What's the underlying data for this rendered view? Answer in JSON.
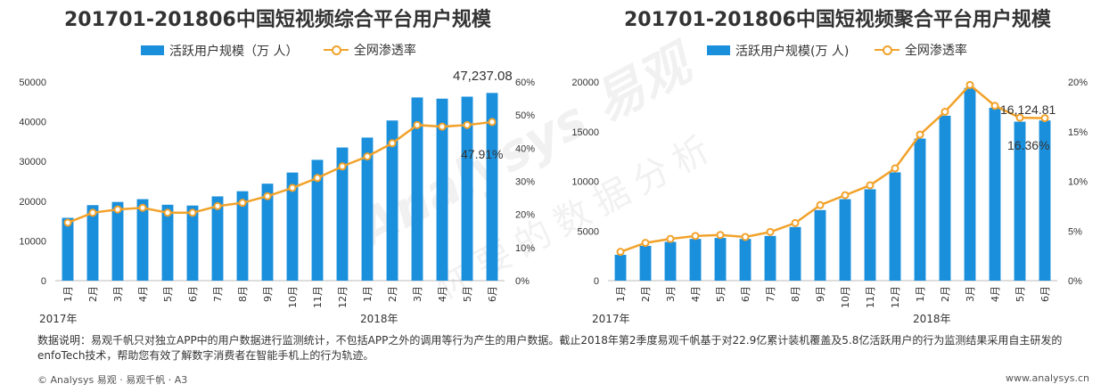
{
  "chart_data": [
    {
      "type": "bar",
      "title": "201701-201806中国短视频综合平台用户规模",
      "legend": [
        "活跃用户规模（万 人）",
        "全网渗透率"
      ],
      "categories": [
        "1月",
        "2月",
        "3月",
        "4月",
        "5月",
        "6月",
        "7月",
        "8月",
        "9月",
        "10月",
        "11月",
        "12月",
        "1月",
        "2月",
        "3月",
        "4月",
        "5月",
        "6月"
      ],
      "year_labels": [
        "2017年",
        "2018年"
      ],
      "series": [
        {
          "name": "活跃用户规模（万 人）",
          "type": "bar",
          "axis": "left",
          "values": [
            15800,
            19000,
            19800,
            20500,
            19100,
            18900,
            21200,
            22500,
            24400,
            27200,
            30400,
            33500,
            36000,
            40300,
            46100,
            45800,
            46300,
            47237.08
          ]
        },
        {
          "name": "全网渗透率",
          "type": "line",
          "axis": "right",
          "values": [
            17.5,
            20.5,
            21.5,
            22.0,
            20.5,
            20.5,
            22.5,
            23.5,
            25.5,
            28.0,
            31.0,
            34.5,
            37.5,
            41.5,
            47.0,
            46.5,
            47.0,
            47.91
          ]
        }
      ],
      "left_axis": {
        "min": 0,
        "max": 50000,
        "ticks": [
          "0",
          "10000",
          "20000",
          "30000",
          "40000",
          "50000"
        ]
      },
      "right_axis": {
        "min": 0,
        "max": 60,
        "ticks": [
          "0%",
          "10%",
          "20%",
          "30%",
          "40%",
          "50%",
          "60%"
        ]
      },
      "annotations": [
        "47,237.08",
        "47.91%"
      ]
    },
    {
      "type": "bar",
      "title": "201701-201806中国短视频聚合平台用户规模",
      "legend": [
        "活跃用户规模(万 人)",
        "全网渗透率"
      ],
      "categories": [
        "1月",
        "2月",
        "3月",
        "4月",
        "5月",
        "6月",
        "7月",
        "8月",
        "9月",
        "10月",
        "11月",
        "12月",
        "1月",
        "2月",
        "3月",
        "4月",
        "5月",
        "6月"
      ],
      "year_labels": [
        "2017年",
        "2018年"
      ],
      "series": [
        {
          "name": "活跃用户规模(万 人)",
          "type": "bar",
          "axis": "left",
          "values": [
            2600,
            3500,
            3900,
            4200,
            4300,
            4200,
            4500,
            5400,
            7100,
            8200,
            9200,
            10900,
            14300,
            16600,
            19400,
            17400,
            16000,
            16124.81
          ]
        },
        {
          "name": "全网渗透率",
          "type": "line",
          "axis": "right",
          "values": [
            2.9,
            3.8,
            4.2,
            4.5,
            4.6,
            4.4,
            4.9,
            5.8,
            7.6,
            8.6,
            9.6,
            11.3,
            14.7,
            17.0,
            19.7,
            17.6,
            16.4,
            16.36
          ]
        }
      ],
      "left_axis": {
        "min": 0,
        "max": 20000,
        "ticks": [
          "0",
          "5000",
          "10000",
          "15000",
          "20000"
        ]
      },
      "right_axis": {
        "min": 0,
        "max": 20,
        "ticks": [
          "0%",
          "5%",
          "10%",
          "15%",
          "20%"
        ]
      },
      "annotations": [
        "16,124.81",
        "16.36%"
      ]
    }
  ],
  "colors": {
    "bar": "#1a8fdc",
    "line": "#f2a22a"
  },
  "footnote": "数据说明：易观千帆只对独立APP中的用户数据进行监测统计，不包括APP之外的调用等行为产生的用户数据。截止2018年第2季度易观千帆基于对22.9亿累计装机覆盖及5.8亿活跃用户的行为监测结果采用自主研发的enfoTech技术，帮助您有效了解数字消费者在智能手机上的行为轨迹。",
  "footer": {
    "left": "© Analysys 易观 · 易观千帆 · A3",
    "right": "www.analysys.cn"
  },
  "watermark": {
    "brand": "Analysys 易观",
    "slogan": "你要的数据分析"
  }
}
